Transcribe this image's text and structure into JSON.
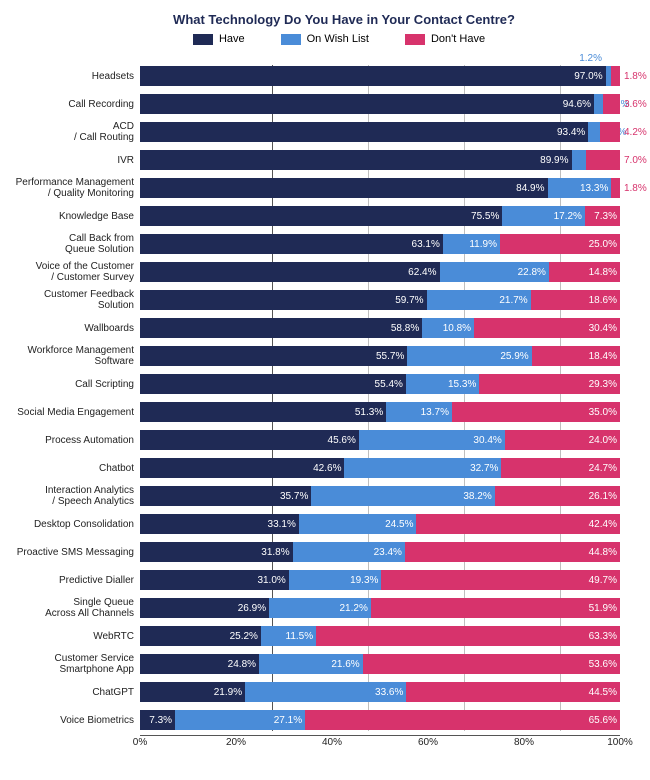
{
  "chart": {
    "type": "stacked_bar_horizontal",
    "title": "What Technology Do You Have in Your Contact Centre?",
    "title_fontsize": 13,
    "title_color": "#1f2a55",
    "background_color": "#ffffff",
    "xlim": [
      0,
      100
    ],
    "xtick_step": 20,
    "xtick_labels": [
      "0%",
      "20%",
      "40%",
      "60%",
      "80%",
      "100%"
    ],
    "label_fontsize": 10,
    "value_fontsize": 10,
    "grid_color": "#bfbfbf",
    "series": [
      {
        "name": "Have",
        "color": "#1f2a55"
      },
      {
        "name": "On Wish List",
        "color": "#4a8cd8"
      },
      {
        "name": "Don't Have",
        "color": "#d7336c"
      }
    ],
    "top_overflow_label": {
      "text": "1.2%",
      "color": "#4a8cd8"
    },
    "categories": [
      {
        "label": "Headsets",
        "values": [
          97.0,
          1.2,
          1.8
        ],
        "show": [
          "97.0%",
          "",
          "1.8%"
        ],
        "outside": [
          false,
          true,
          true
        ]
      },
      {
        "label": "Call Recording",
        "values": [
          94.6,
          1.8,
          3.6
        ],
        "show": [
          "94.6%",
          "1.8%",
          "3.6%"
        ],
        "outside": [
          false,
          true,
          true
        ]
      },
      {
        "label": "ACD / Call Routing",
        "values": [
          93.4,
          2.4,
          4.2
        ],
        "show": [
          "93.4%",
          "2.4%",
          "4.2%"
        ],
        "outside": [
          false,
          true,
          true
        ]
      },
      {
        "label": "IVR",
        "values": [
          89.9,
          3.1,
          7.0
        ],
        "show": [
          "89.9%",
          "3.1%",
          "7.0%"
        ],
        "outside": [
          false,
          true,
          true
        ]
      },
      {
        "label": "Performance Management / Quality Monitoring",
        "values": [
          84.9,
          13.3,
          1.8
        ],
        "show": [
          "84.9%",
          "13.3%",
          "1.8%"
        ],
        "outside": [
          false,
          false,
          true
        ]
      },
      {
        "label": "Knowledge Base",
        "values": [
          75.5,
          17.2,
          7.3
        ],
        "show": [
          "75.5%",
          "17.2%",
          "7.3%"
        ],
        "outside": [
          false,
          false,
          false
        ]
      },
      {
        "label": "Call Back from Queue Solution",
        "values": [
          63.1,
          11.9,
          25.0
        ],
        "show": [
          "63.1%",
          "11.9%",
          "25.0%"
        ],
        "outside": [
          false,
          false,
          false
        ]
      },
      {
        "label": "Voice of the Customer / Customer Survey",
        "values": [
          62.4,
          22.8,
          14.8
        ],
        "show": [
          "62.4%",
          "22.8%",
          "14.8%"
        ],
        "outside": [
          false,
          false,
          false
        ]
      },
      {
        "label": "Customer Feedback Solution",
        "values": [
          59.7,
          21.7,
          18.6
        ],
        "show": [
          "59.7%",
          "21.7%",
          "18.6%"
        ],
        "outside": [
          false,
          false,
          false
        ]
      },
      {
        "label": "Wallboards",
        "values": [
          58.8,
          10.8,
          30.4
        ],
        "show": [
          "58.8%",
          "10.8%",
          "30.4%"
        ],
        "outside": [
          false,
          false,
          false
        ]
      },
      {
        "label": "Workforce Management Software",
        "values": [
          55.7,
          25.9,
          18.4
        ],
        "show": [
          "55.7%",
          "25.9%",
          "18.4%"
        ],
        "outside": [
          false,
          false,
          false
        ]
      },
      {
        "label": "Call Scripting",
        "values": [
          55.4,
          15.3,
          29.3
        ],
        "show": [
          "55.4%",
          "15.3%",
          "29.3%"
        ],
        "outside": [
          false,
          false,
          false
        ]
      },
      {
        "label": "Social Media Engagement",
        "values": [
          51.3,
          13.7,
          35.0
        ],
        "show": [
          "51.3%",
          "13.7%",
          "35.0%"
        ],
        "outside": [
          false,
          false,
          false
        ]
      },
      {
        "label": "Process Automation",
        "values": [
          45.6,
          30.4,
          24.0
        ],
        "show": [
          "45.6%",
          "30.4%",
          "24.0%"
        ],
        "outside": [
          false,
          false,
          false
        ]
      },
      {
        "label": "Chatbot",
        "values": [
          42.6,
          32.7,
          24.7
        ],
        "show": [
          "42.6%",
          "32.7%",
          "24.7%"
        ],
        "outside": [
          false,
          false,
          false
        ]
      },
      {
        "label": "Interaction Analytics / Speech Analytics",
        "values": [
          35.7,
          38.2,
          26.1
        ],
        "show": [
          "35.7%",
          "38.2%",
          "26.1%"
        ],
        "outside": [
          false,
          false,
          false
        ]
      },
      {
        "label": "Desktop Consolidation",
        "values": [
          33.1,
          24.5,
          42.4
        ],
        "show": [
          "33.1%",
          "24.5%",
          "42.4%"
        ],
        "outside": [
          false,
          false,
          false
        ]
      },
      {
        "label": "Proactive SMS Messaging",
        "values": [
          31.8,
          23.4,
          44.8
        ],
        "show": [
          "31.8%",
          "23.4%",
          "44.8%"
        ],
        "outside": [
          false,
          false,
          false
        ]
      },
      {
        "label": "Predictive Dialler",
        "values": [
          31.0,
          19.3,
          49.7
        ],
        "show": [
          "31.0%",
          "19.3%",
          "49.7%"
        ],
        "outside": [
          false,
          false,
          false
        ]
      },
      {
        "label": "Single Queue Across All Channels",
        "values": [
          26.9,
          21.2,
          51.9
        ],
        "show": [
          "26.9%",
          "21.2%",
          "51.9%"
        ],
        "outside": [
          false,
          false,
          false
        ]
      },
      {
        "label": "WebRTC",
        "values": [
          25.2,
          11.5,
          63.3
        ],
        "show": [
          "25.2%",
          "11.5%",
          "63.3%"
        ],
        "outside": [
          false,
          false,
          false
        ]
      },
      {
        "label": "Customer Service Smartphone App",
        "values": [
          24.8,
          21.6,
          53.6
        ],
        "show": [
          "24.8%",
          "21.6%",
          "53.6%"
        ],
        "outside": [
          false,
          false,
          false
        ]
      },
      {
        "label": "ChatGPT",
        "values": [
          21.9,
          33.6,
          44.5
        ],
        "show": [
          "21.9%",
          "33.6%",
          "44.5%"
        ],
        "outside": [
          false,
          false,
          false
        ]
      },
      {
        "label": "Voice Biometrics",
        "values": [
          7.3,
          27.1,
          65.6
        ],
        "show": [
          "7.3%",
          "27.1%",
          "65.6%"
        ],
        "outside": [
          false,
          false,
          false
        ]
      }
    ]
  }
}
